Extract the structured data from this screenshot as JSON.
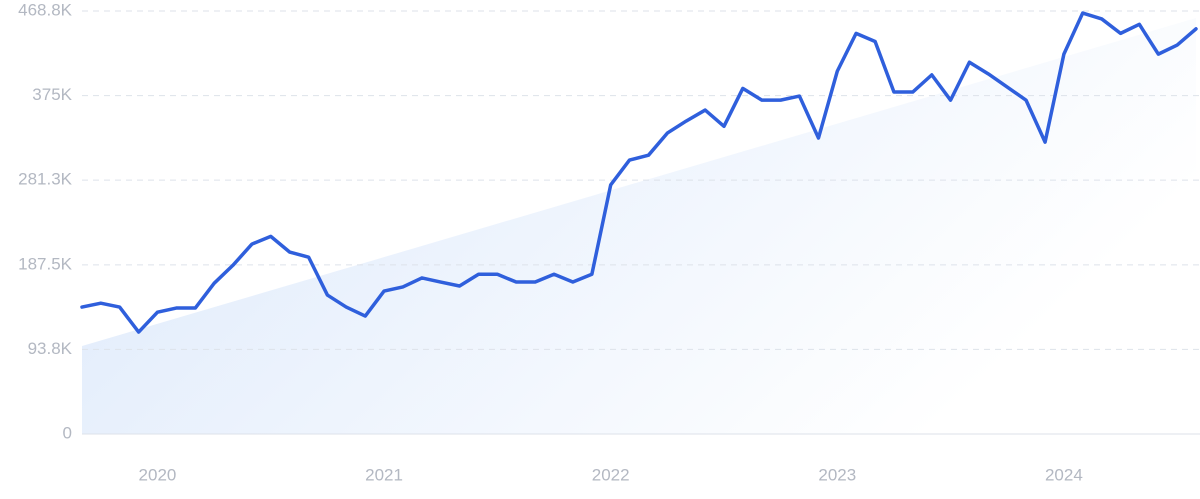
{
  "chart_data": {
    "type": "line",
    "x": [
      2019.667,
      2019.75,
      2019.833,
      2019.917,
      2020,
      2020.083,
      2020.167,
      2020.25,
      2020.333,
      2020.417,
      2020.5,
      2020.583,
      2020.667,
      2020.75,
      2020.833,
      2020.917,
      2021,
      2021.083,
      2021.167,
      2021.25,
      2021.333,
      2021.417,
      2021.5,
      2021.583,
      2021.667,
      2021.75,
      2021.833,
      2021.917,
      2022,
      2022.083,
      2022.167,
      2022.25,
      2022.333,
      2022.417,
      2022.5,
      2022.583,
      2022.667,
      2022.75,
      2022.833,
      2022.917,
      2023,
      2023.083,
      2023.167,
      2023.25,
      2023.333,
      2023.417,
      2023.5,
      2023.583,
      2023.667,
      2023.75,
      2023.833,
      2023.917,
      2024,
      2024.083,
      2024.167,
      2024.25,
      2024.333,
      2024.417,
      2024.5,
      2024.583
    ],
    "values": [
      140700,
      145000,
      140700,
      113000,
      135000,
      139600,
      139600,
      167000,
      187000,
      210500,
      219000,
      201700,
      196000,
      154000,
      140700,
      130700,
      158400,
      163000,
      173000,
      168400,
      164000,
      177000,
      177000,
      168400,
      168400,
      177000,
      168400,
      177000,
      276000,
      303600,
      309000,
      333500,
      346800,
      359000,
      341000,
      383000,
      370000,
      370000,
      374500,
      328000,
      402000,
      444000,
      435000,
      379000,
      379000,
      398000,
      370000,
      412000,
      399000,
      384500,
      370000,
      323500,
      421000,
      466500,
      460000,
      444000,
      454000,
      421000,
      431000,
      449000
    ],
    "color": "#2f5fdc",
    "trend": [
      97500,
      461000
    ],
    "trend_color": "#dbe8fb",
    "xlim": [
      2019.667,
      2024.583
    ],
    "xticks": [
      2020,
      2021,
      2022,
      2023,
      2024
    ],
    "ylim": [
      0,
      468800
    ],
    "yticks": [
      0,
      {
        "value": 93800,
        "label": "93.8K"
      },
      {
        "value": 187500,
        "label": "187.5K"
      },
      {
        "value": 281300,
        "label": "281.3K"
      },
      {
        "value": 375000,
        "label": "375K"
      },
      {
        "value": 468800,
        "label": "468.8K"
      }
    ],
    "grid": true
  }
}
